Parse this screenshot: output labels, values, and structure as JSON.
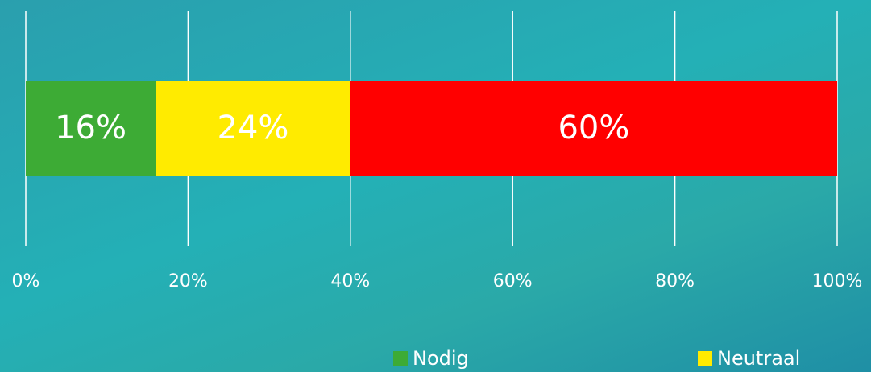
{
  "chart_data": {
    "type": "stacked-bar-horizontal",
    "series": [
      {
        "name": "Nodig",
        "color": "#3dab35",
        "values": [
          16
        ],
        "value_labels": [
          "16%"
        ]
      },
      {
        "name": "Neutraal",
        "color": "#ffeb00",
        "values": [
          24
        ],
        "value_labels": [
          "24%"
        ]
      },
      {
        "color": "#ff0000",
        "values": [
          60
        ],
        "value_labels": [
          "60%"
        ]
      }
    ],
    "xlim": [
      0,
      100
    ],
    "xticks": [
      {
        "value": 0,
        "label": "0%"
      },
      {
        "value": 20,
        "label": "20%"
      },
      {
        "value": 40,
        "label": "40%"
      },
      {
        "value": 60,
        "label": "60%"
      },
      {
        "value": 80,
        "label": "80%"
      },
      {
        "value": 100,
        "label": "100%"
      }
    ],
    "grid": true
  }
}
